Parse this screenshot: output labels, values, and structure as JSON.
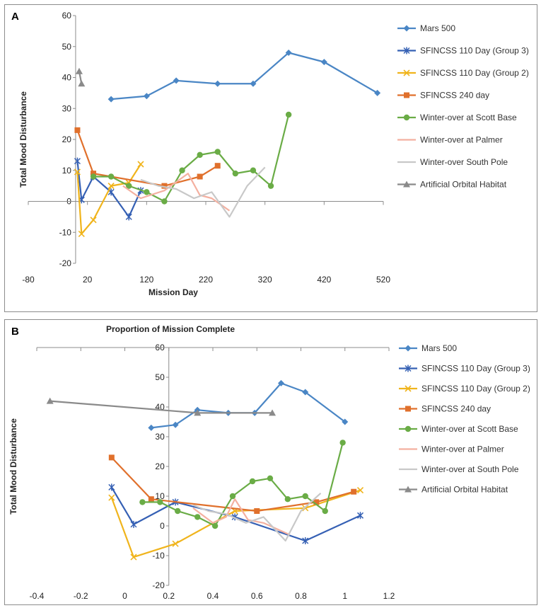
{
  "chart_data": [
    {
      "id": "A",
      "type": "line",
      "panel_label": "A",
      "title": "",
      "xlabel": "Mission Day",
      "ylabel": "Total Mood Disturbance",
      "xlim": [
        -80,
        520
      ],
      "ylim": [
        -20,
        60
      ],
      "xticks": [
        -80,
        20,
        120,
        220,
        320,
        420,
        520
      ],
      "yticks": [
        -20,
        -10,
        0,
        10,
        20,
        30,
        40,
        50,
        60
      ],
      "x_axis_at": 0,
      "y_axis_at": 0,
      "series": [
        {
          "name": "Mars 500",
          "color": "#4a86c5",
          "marker": "diamond",
          "points": [
            [
              60,
              33
            ],
            [
              120,
              34
            ],
            [
              170,
              39
            ],
            [
              240,
              38
            ],
            [
              300,
              38
            ],
            [
              360,
              48
            ],
            [
              420,
              45
            ],
            [
              510,
              35
            ]
          ]
        },
        {
          "name": "SFINCSS 110 Day (Group 3)",
          "color": "#3560b4",
          "marker": "star",
          "points": [
            [
              3,
              13
            ],
            [
              10,
              0.5
            ],
            [
              30,
              8
            ],
            [
              60,
              3
            ],
            [
              90,
              -5
            ],
            [
              110,
              3.5
            ]
          ]
        },
        {
          "name": "SFINCSS 110 Day (Group 2)",
          "color": "#f0b41c",
          "marker": "x",
          "points": [
            [
              3,
              9.5
            ],
            [
              10,
              -10.5
            ],
            [
              30,
              -6
            ],
            [
              60,
              5
            ],
            [
              90,
              6
            ],
            [
              110,
              12
            ]
          ]
        },
        {
          "name": "SFINCSS 240 day",
          "color": "#e0702c",
          "marker": "square",
          "points": [
            [
              3,
              23
            ],
            [
              30,
              9
            ],
            [
              150,
              5
            ],
            [
              210,
              8
            ],
            [
              240,
              11.5
            ]
          ]
        },
        {
          "name": "Winter-over at Scott Base",
          "color": "#6aac46",
          "marker": "circle",
          "points": [
            [
              30,
              8
            ],
            [
              60,
              8
            ],
            [
              90,
              5
            ],
            [
              120,
              3
            ],
            [
              150,
              0
            ],
            [
              180,
              10
            ],
            [
              210,
              15
            ],
            [
              240,
              16
            ],
            [
              270,
              9
            ],
            [
              300,
              10
            ],
            [
              330,
              5
            ],
            [
              360,
              28
            ]
          ]
        },
        {
          "name": "Winter-over at Palmer",
          "color": "#f4b0a0",
          "marker": "none",
          "points": [
            [
              80,
              5
            ],
            [
              110,
              1
            ],
            [
              150,
              3.5
            ],
            [
              190,
              9
            ],
            [
              210,
              2
            ],
            [
              230,
              1
            ],
            [
              260,
              -3
            ]
          ]
        },
        {
          "name": "Winter-over South Pole",
          "color": "#c8c8c8",
          "marker": "none",
          "points": [
            [
              110,
              7
            ],
            [
              140,
              5
            ],
            [
              170,
              4
            ],
            [
              200,
              1
            ],
            [
              230,
              3
            ],
            [
              260,
              -5
            ],
            [
              290,
              5
            ],
            [
              320,
              11
            ]
          ]
        },
        {
          "name": "Artificial Orbital Habitat",
          "color": "#8a8a8a",
          "marker": "triangle",
          "points": [
            [
              6,
              42
            ],
            [
              10,
              38
            ]
          ]
        }
      ]
    },
    {
      "id": "B",
      "type": "line",
      "panel_label": "B",
      "title": "Proportion of Mission Complete",
      "xlabel": "",
      "ylabel": "Total Mood Disturbance",
      "xlim": [
        -0.4,
        1.2
      ],
      "ylim": [
        -20,
        60
      ],
      "xticks": [
        -0.4,
        -0.2,
        0,
        0.2,
        0.4,
        0.6,
        0.8,
        1,
        1.2
      ],
      "yticks": [
        -20,
        -10,
        0,
        10,
        20,
        30,
        40,
        50,
        60
      ],
      "x_axis_at": 60,
      "y_axis_at": 0.2,
      "series": [
        {
          "name": "Mars 500",
          "color": "#4a86c5",
          "marker": "diamond",
          "points": [
            [
              0.12,
              33
            ],
            [
              0.23,
              34
            ],
            [
              0.33,
              39
            ],
            [
              0.47,
              38
            ],
            [
              0.59,
              38
            ],
            [
              0.71,
              48
            ],
            [
              0.82,
              45
            ],
            [
              1.0,
              35
            ]
          ]
        },
        {
          "name": "SFINCSS 110 Day (Group 3)",
          "color": "#3560b4",
          "marker": "star",
          "points": [
            [
              -0.06,
              13
            ],
            [
              0.04,
              0.5
            ],
            [
              0.23,
              8
            ],
            [
              0.5,
              3
            ],
            [
              0.82,
              -5
            ],
            [
              1.07,
              3.5
            ]
          ]
        },
        {
          "name": "SFINCSS 110 Day (Group 2)",
          "color": "#f0b41c",
          "marker": "x",
          "points": [
            [
              -0.06,
              9.5
            ],
            [
              0.04,
              -10.5
            ],
            [
              0.23,
              -6
            ],
            [
              0.5,
              5
            ],
            [
              0.82,
              6
            ],
            [
              1.07,
              12
            ]
          ]
        },
        {
          "name": "SFINCSS 240 day",
          "color": "#e0702c",
          "marker": "square",
          "points": [
            [
              -0.06,
              23
            ],
            [
              0.12,
              9
            ],
            [
              0.6,
              5
            ],
            [
              0.87,
              8
            ],
            [
              1.04,
              11.5
            ]
          ]
        },
        {
          "name": "Winter-over at Scott Base",
          "color": "#6aac46",
          "marker": "circle",
          "points": [
            [
              0.08,
              8
            ],
            [
              0.16,
              8
            ],
            [
              0.24,
              5
            ],
            [
              0.33,
              3
            ],
            [
              0.41,
              0
            ],
            [
              0.49,
              10
            ],
            [
              0.58,
              15
            ],
            [
              0.66,
              16
            ],
            [
              0.74,
              9
            ],
            [
              0.82,
              10
            ],
            [
              0.91,
              5
            ],
            [
              0.99,
              28
            ]
          ]
        },
        {
          "name": "Winter-over at Palmer",
          "color": "#f4b0a0",
          "marker": "none",
          "points": [
            [
              0.31,
              6
            ],
            [
              0.4,
              1
            ],
            [
              0.46,
              3
            ],
            [
              0.5,
              9
            ],
            [
              0.56,
              2
            ],
            [
              0.63,
              1
            ],
            [
              0.75,
              -3
            ]
          ]
        },
        {
          "name": "Winter-over at South Pole",
          "color": "#c8c8c8",
          "marker": "none",
          "points": [
            [
              0.31,
              7
            ],
            [
              0.38,
              5
            ],
            [
              0.46,
              4
            ],
            [
              0.55,
              1
            ],
            [
              0.63,
              3
            ],
            [
              0.73,
              -5
            ],
            [
              0.8,
              5
            ],
            [
              0.89,
              11
            ]
          ]
        },
        {
          "name": "Artificial Orbital Habitat",
          "color": "#8a8a8a",
          "marker": "triangle",
          "points": [
            [
              -0.34,
              42
            ],
            [
              0.33,
              38
            ],
            [
              0.67,
              38
            ]
          ]
        }
      ]
    }
  ]
}
